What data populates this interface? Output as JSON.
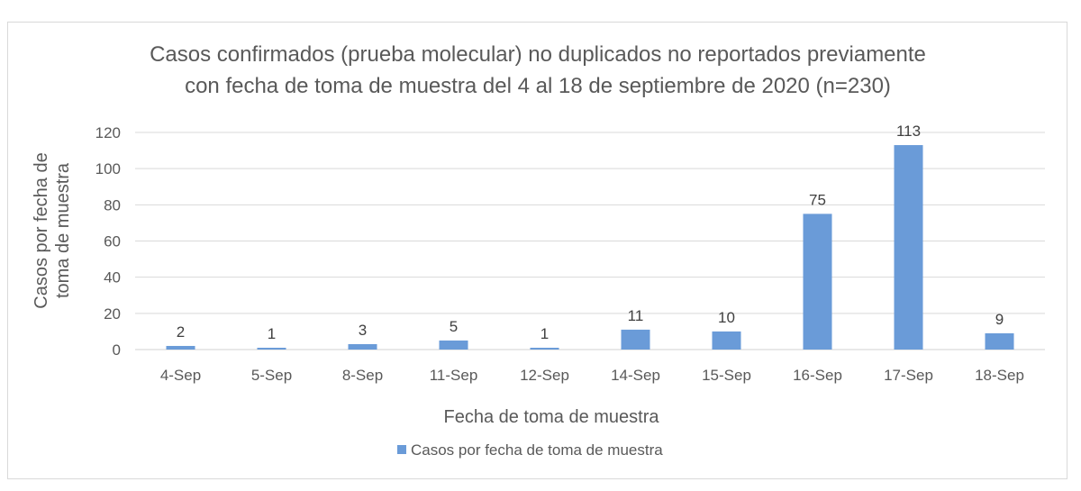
{
  "chart_data": {
    "type": "bar",
    "title_lines": [
      "Casos confirmados (prueba molecular) no duplicados no reportados previamente",
      "con fecha de toma de muestra del 4 al 18 de septiembre de 2020 (n=230)"
    ],
    "xlabel": "Fecha de toma de muestra",
    "ylabel_lines": [
      "Casos por fecha de",
      "toma de muestra"
    ],
    "categories": [
      "4-Sep",
      "5-Sep",
      "8-Sep",
      "11-Sep",
      "12-Sep",
      "14-Sep",
      "15-Sep",
      "16-Sep",
      "17-Sep",
      "18-Sep"
    ],
    "series": [
      {
        "name": "Casos por fecha de toma de muestra",
        "values": [
          2,
          1,
          3,
          5,
          1,
          11,
          10,
          75,
          113,
          9
        ],
        "color": "#6a9bd8"
      }
    ],
    "ylim": [
      0,
      120
    ],
    "yticks": [
      0,
      20,
      40,
      60,
      80,
      100,
      120
    ],
    "grid": true,
    "legend_position": "bottom",
    "data_labels": true
  }
}
